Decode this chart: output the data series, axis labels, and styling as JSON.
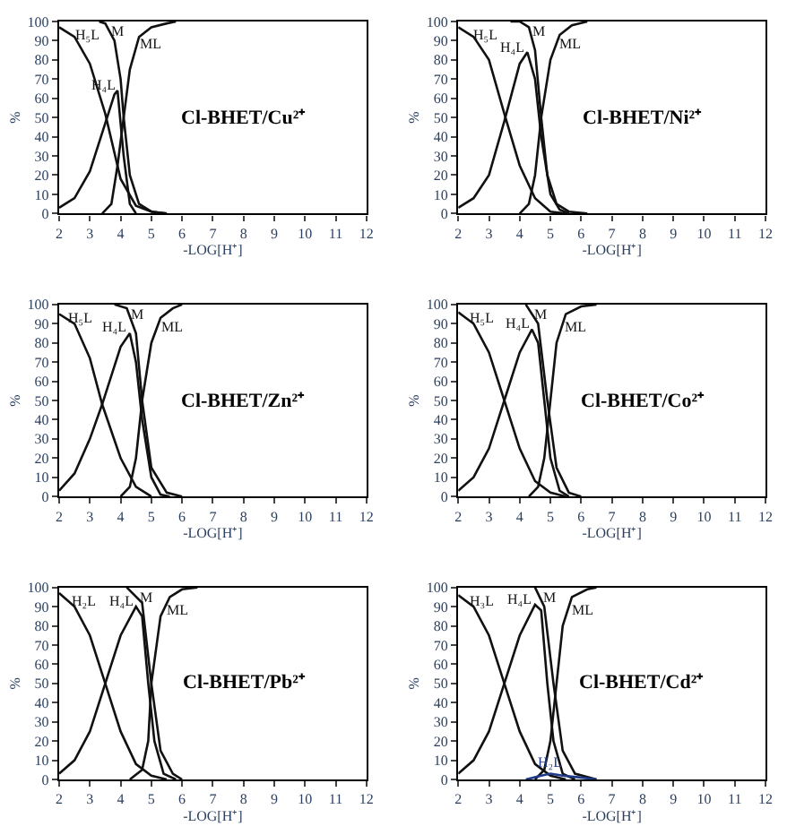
{
  "chart_data": [
    {
      "type": "line",
      "title": "Cl-BHET/Cu²⁺",
      "xlabel": "-LOG[H⁺]",
      "ylabel": "%",
      "xlim": [
        2,
        12
      ],
      "ylim": [
        0,
        100
      ],
      "xticks": [
        2,
        3,
        4,
        5,
        6,
        7,
        8,
        9,
        10,
        11,
        12
      ],
      "yticks": [
        0,
        10,
        20,
        30,
        40,
        50,
        60,
        70,
        80,
        90,
        100
      ],
      "grid": false,
      "legend": false,
      "line_style": "solid",
      "marker": "none",
      "series": [
        {
          "name": "H₅L",
          "color": "#111111",
          "x": [
            2,
            2.5,
            3,
            3.5,
            4,
            4.5,
            5,
            5.5
          ],
          "values": [
            97,
            92,
            78,
            52,
            18,
            4,
            1,
            0
          ]
        },
        {
          "name": "H₄L",
          "color": "#111111",
          "x": [
            2,
            2.5,
            3,
            3.5,
            3.8,
            3.9,
            4.1,
            4.3,
            4.5
          ],
          "values": [
            3,
            8,
            22,
            47,
            62,
            64,
            30,
            5,
            0
          ]
        },
        {
          "name": "M",
          "color": "#111111",
          "x": [
            3.3,
            3.5,
            3.8,
            4,
            4.1,
            4.3,
            4.6,
            5,
            5.5
          ],
          "values": [
            100,
            99,
            90,
            70,
            50,
            20,
            5,
            1,
            0
          ]
        },
        {
          "name": "ML",
          "color": "#111111",
          "x": [
            3.4,
            3.7,
            3.9,
            4.1,
            4.3,
            4.6,
            5,
            5.5,
            5.8
          ],
          "values": [
            0,
            5,
            25,
            50,
            75,
            92,
            97,
            99,
            100
          ]
        }
      ]
    },
    {
      "type": "line",
      "title": "Cl-BHET/Ni²⁺",
      "xlabel": "-LOG[H⁺]",
      "ylabel": "%",
      "xlim": [
        2,
        12
      ],
      "ylim": [
        0,
        100
      ],
      "xticks": [
        2,
        3,
        4,
        5,
        6,
        7,
        8,
        9,
        10,
        11,
        12
      ],
      "yticks": [
        0,
        10,
        20,
        30,
        40,
        50,
        60,
        70,
        80,
        90,
        100
      ],
      "grid": false,
      "legend": false,
      "line_style": "solid",
      "marker": "none",
      "series": [
        {
          "name": "H₅L",
          "color": "#111111",
          "x": [
            2,
            2.5,
            3,
            3.5,
            4,
            4.5,
            5,
            5.5
          ],
          "values": [
            97,
            92,
            80,
            52,
            25,
            8,
            1,
            0
          ]
        },
        {
          "name": "H₄L",
          "color": "#111111",
          "x": [
            2,
            2.5,
            3,
            3.5,
            4,
            4.25,
            4.5,
            4.7,
            5,
            5.3,
            5.6
          ],
          "values": [
            3,
            8,
            20,
            48,
            78,
            84,
            70,
            40,
            10,
            2,
            0
          ]
        },
        {
          "name": "M",
          "color": "#111111",
          "x": [
            3.7,
            4,
            4.3,
            4.5,
            4.7,
            4.9,
            5.2,
            5.6,
            6.2
          ],
          "values": [
            100,
            100,
            97,
            85,
            50,
            20,
            5,
            1,
            0
          ]
        },
        {
          "name": "ML",
          "color": "#111111",
          "x": [
            4,
            4.3,
            4.5,
            4.7,
            5,
            5.3,
            5.7,
            6.2
          ],
          "values": [
            0,
            5,
            20,
            50,
            80,
            93,
            98,
            100
          ]
        }
      ]
    },
    {
      "type": "line",
      "title": "Cl-BHET/Zn²⁺",
      "xlabel": "-LOG[H⁺]",
      "ylabel": "%",
      "xlim": [
        2,
        12
      ],
      "ylim": [
        0,
        100
      ],
      "xticks": [
        2,
        3,
        4,
        5,
        6,
        7,
        8,
        9,
        10,
        11,
        12
      ],
      "yticks": [
        0,
        10,
        20,
        30,
        40,
        50,
        60,
        70,
        80,
        90,
        100
      ],
      "grid": false,
      "legend": false,
      "line_style": "solid",
      "marker": "none",
      "series": [
        {
          "name": "H₅L",
          "color": "#111111",
          "x": [
            2,
            2.5,
            3,
            3.4,
            4,
            4.5,
            5
          ],
          "values": [
            95,
            90,
            72,
            48,
            20,
            5,
            0
          ]
        },
        {
          "name": "H₄L",
          "color": "#111111",
          "x": [
            2,
            2.5,
            3,
            3.4,
            4,
            4.3,
            4.5,
            4.7,
            5,
            5.3,
            5.6
          ],
          "values": [
            3,
            12,
            30,
            48,
            78,
            85,
            70,
            40,
            10,
            1,
            0
          ]
        },
        {
          "name": "M",
          "color": "#111111",
          "x": [
            3.8,
            4.2,
            4.5,
            4.7,
            5,
            5.5,
            6
          ],
          "values": [
            100,
            98,
            85,
            50,
            15,
            2,
            0
          ]
        },
        {
          "name": "ML",
          "color": "#111111",
          "x": [
            4,
            4.3,
            4.5,
            4.7,
            5,
            5.3,
            5.7,
            6
          ],
          "values": [
            0,
            5,
            20,
            50,
            80,
            93,
            98,
            100
          ]
        }
      ]
    },
    {
      "type": "line",
      "title": "Cl-BHET/Co²⁺",
      "xlabel": "-LOG[H⁺]",
      "ylabel": "%",
      "xlim": [
        2,
        12
      ],
      "ylim": [
        0,
        100
      ],
      "xticks": [
        2,
        3,
        4,
        5,
        6,
        7,
        8,
        9,
        10,
        11,
        12
      ],
      "yticks": [
        0,
        10,
        20,
        30,
        40,
        50,
        60,
        70,
        80,
        90,
        100
      ],
      "grid": false,
      "legend": false,
      "line_style": "solid",
      "marker": "none",
      "series": [
        {
          "name": "H₅L",
          "color": "#111111",
          "x": [
            2,
            2.5,
            3,
            3.5,
            4,
            4.5,
            5,
            5.5
          ],
          "values": [
            96,
            90,
            75,
            50,
            25,
            8,
            2,
            0
          ]
        },
        {
          "name": "H₄L",
          "color": "#111111",
          "x": [
            2,
            2.5,
            3,
            3.5,
            4,
            4.4,
            4.6,
            4.8,
            5,
            5.3,
            5.6
          ],
          "values": [
            3,
            10,
            25,
            50,
            75,
            87,
            80,
            50,
            20,
            3,
            0
          ]
        },
        {
          "name": "M",
          "color": "#111111",
          "x": [
            4.2,
            4.6,
            4.9,
            5.2,
            5.6,
            6
          ],
          "values": [
            100,
            90,
            50,
            15,
            2,
            0
          ]
        },
        {
          "name": "ML",
          "color": "#111111",
          "x": [
            4.3,
            4.6,
            4.8,
            5,
            5.2,
            5.5,
            6,
            6.5
          ],
          "values": [
            0,
            5,
            20,
            50,
            80,
            95,
            99,
            100
          ]
        }
      ]
    },
    {
      "type": "line",
      "title": "Cl-BHET/Pb²⁺",
      "xlabel": "-LOG[H⁺]",
      "ylabel": "%",
      "xlim": [
        2,
        12
      ],
      "ylim": [
        0,
        100
      ],
      "xticks": [
        2,
        3,
        4,
        5,
        6,
        7,
        8,
        9,
        10,
        11,
        12
      ],
      "yticks": [
        0,
        10,
        20,
        30,
        40,
        50,
        60,
        70,
        80,
        90,
        100
      ],
      "grid": false,
      "legend": false,
      "line_style": "solid",
      "marker": "none",
      "series": [
        {
          "name": "H₂L",
          "color": "#111111",
          "x": [
            2,
            2.5,
            3,
            3.5,
            4,
            4.5,
            5,
            5.5
          ],
          "values": [
            97,
            90,
            75,
            50,
            25,
            8,
            2,
            0
          ]
        },
        {
          "name": "H₄L",
          "color": "#111111",
          "x": [
            2,
            2.5,
            3,
            3.5,
            4,
            4.5,
            4.7,
            4.9,
            5.1,
            5.4,
            5.8
          ],
          "values": [
            3,
            10,
            25,
            50,
            75,
            90,
            85,
            50,
            20,
            3,
            0
          ]
        },
        {
          "name": "M",
          "color": "#111111",
          "x": [
            4.2,
            4.7,
            5,
            5.3,
            5.7,
            6
          ],
          "values": [
            100,
            92,
            50,
            15,
            3,
            0
          ]
        },
        {
          "name": "ML",
          "color": "#111111",
          "x": [
            4.3,
            4.7,
            4.9,
            5,
            5.3,
            5.6,
            6,
            6.5
          ],
          "values": [
            0,
            5,
            20,
            50,
            85,
            95,
            99,
            100
          ]
        }
      ]
    },
    {
      "type": "line",
      "title": "Cl-BHET/Cd²⁺",
      "xlabel": "-LOG[H⁺]",
      "ylabel": "%",
      "xlim": [
        2,
        12
      ],
      "ylim": [
        0,
        100
      ],
      "xticks": [
        2,
        3,
        4,
        5,
        6,
        7,
        8,
        9,
        10,
        11,
        12
      ],
      "yticks": [
        0,
        10,
        20,
        30,
        40,
        50,
        60,
        70,
        80,
        90,
        100
      ],
      "grid": false,
      "legend": false,
      "line_style": "solid",
      "marker": "none",
      "series": [
        {
          "name": "H₃L",
          "color": "#111111",
          "x": [
            2,
            2.5,
            3,
            3.5,
            4,
            4.5,
            5,
            5.5
          ],
          "values": [
            96,
            90,
            75,
            50,
            25,
            8,
            2,
            0
          ]
        },
        {
          "name": "H₄L",
          "color": "#111111",
          "x": [
            2,
            2.5,
            3,
            3.5,
            4,
            4.5,
            4.7,
            4.9,
            5.1,
            5.4,
            5.8
          ],
          "values": [
            3,
            10,
            25,
            50,
            75,
            91,
            88,
            50,
            20,
            3,
            0
          ]
        },
        {
          "name": "M",
          "color": "#111111",
          "x": [
            4.5,
            4.8,
            5.1,
            5.4,
            5.8,
            6.5
          ],
          "values": [
            100,
            90,
            50,
            15,
            3,
            0
          ]
        },
        {
          "name": "ML",
          "color": "#111111",
          "x": [
            4.5,
            4.8,
            5,
            5.2,
            5.4,
            5.7,
            6.2,
            6.5
          ],
          "values": [
            0,
            5,
            20,
            50,
            80,
            95,
            99,
            100
          ]
        },
        {
          "name": "H₂L",
          "color": "#1f3a8a",
          "x": [
            4.2,
            4.7,
            5,
            5.4,
            6,
            6.5
          ],
          "values": [
            0,
            2,
            3,
            2,
            1,
            0
          ]
        }
      ]
    }
  ]
}
